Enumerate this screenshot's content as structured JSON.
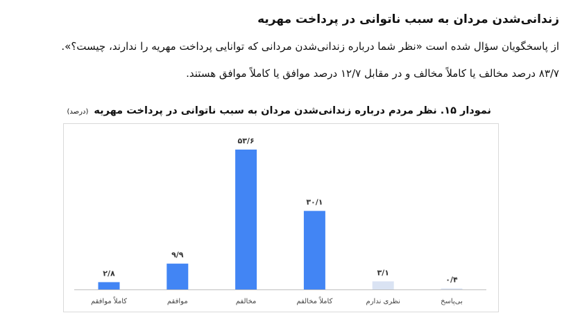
{
  "heading": "زندانی‌شدن مردان به سبب ناتوانی در پرداخت مهریه",
  "paragraph_line1": "از پاسخگویان سؤال شده است «نظر شما درباره زندانی‌شدن مردانی که توانایی پرداخت مهریه را ندارند، چیست؟».",
  "paragraph_line2": "۸۳/۷ درصد مخالف یا کاملاً مخالف و در مقابل ۱۲/۷ درصد موافق یا کاملاً موافق هستند.",
  "chart_data": {
    "type": "bar",
    "title": "نمودار ۱۵. نظر مردم درباره زندانی‌شدن مردان به سبب ناتوانی در پرداخت مهریه",
    "unit": "(درصد)",
    "categories": [
      "کاملاً موافقم",
      "موافقم",
      "مخالفم",
      "کاملاً مخالفم",
      "نظری ندارم",
      "بی‌پاسخ"
    ],
    "values": [
      2.8,
      9.9,
      53.6,
      30.1,
      3.1,
      0.4
    ],
    "value_labels": [
      "۲/۸",
      "۹/۹",
      "۵۳/۶",
      "۳۰/۱",
      "۳/۱",
      "۰/۴"
    ],
    "colors": [
      "#4285f4",
      "#4285f4",
      "#4285f4",
      "#4285f4",
      "#dae3f3",
      "#dae3f3"
    ],
    "ylim": [
      0,
      60
    ],
    "grid": false
  }
}
